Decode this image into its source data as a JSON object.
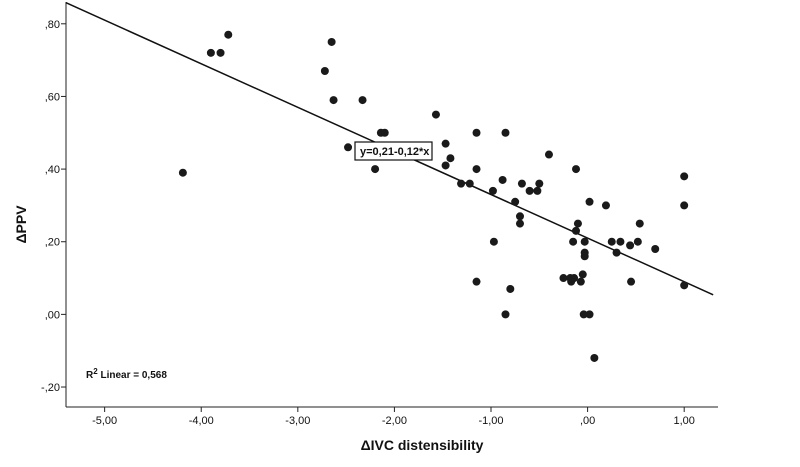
{
  "chart_data": {
    "type": "scatter",
    "title": "",
    "xlabel": "ΔIVC distensibility",
    "ylabel": "ΔPPV",
    "xlim": [
      -5.4,
      1.35
    ],
    "ylim": [
      -0.255,
      0.86
    ],
    "x_ticks": [
      {
        "value": -5,
        "label": "-5,00"
      },
      {
        "value": -4,
        "label": "-4,00"
      },
      {
        "value": -3,
        "label": "-3,00"
      },
      {
        "value": -2,
        "label": "-2,00"
      },
      {
        "value": -1,
        "label": "-1,00"
      },
      {
        "value": 0,
        "label": ",00"
      },
      {
        "value": 1,
        "label": "1,00"
      }
    ],
    "y_ticks": [
      {
        "value": -0.2,
        "label": "-,20"
      },
      {
        "value": 0,
        "label": ",00"
      },
      {
        "value": 0.2,
        "label": ",20"
      },
      {
        "value": 0.4,
        "label": ",40"
      },
      {
        "value": 0.6,
        "label": ",60"
      },
      {
        "value": 0.8,
        "label": ",80"
      }
    ],
    "fit_line": {
      "intercept": 0.21,
      "slope": -0.12,
      "x_range": [
        -5.4,
        1.3
      ]
    },
    "equation_label": "y=0,21-0,12*x",
    "r2_label": {
      "prefix": "R",
      "superscript": "2",
      "suffix": " Linear = 0,568"
    },
    "points": [
      {
        "x": -4.19,
        "y": 0.39
      },
      {
        "x": -3.9,
        "y": 0.72
      },
      {
        "x": -3.8,
        "y": 0.72
      },
      {
        "x": -3.72,
        "y": 0.77
      },
      {
        "x": -2.65,
        "y": 0.75
      },
      {
        "x": -2.72,
        "y": 0.67
      },
      {
        "x": -2.63,
        "y": 0.59
      },
      {
        "x": -2.33,
        "y": 0.59
      },
      {
        "x": -2.48,
        "y": 0.46
      },
      {
        "x": -2.14,
        "y": 0.5
      },
      {
        "x": -2.1,
        "y": 0.5
      },
      {
        "x": -2.2,
        "y": 0.4
      },
      {
        "x": -1.57,
        "y": 0.55
      },
      {
        "x": -1.47,
        "y": 0.47
      },
      {
        "x": -1.42,
        "y": 0.43
      },
      {
        "x": -1.47,
        "y": 0.41
      },
      {
        "x": -1.31,
        "y": 0.36
      },
      {
        "x": -1.22,
        "y": 0.36
      },
      {
        "x": -1.15,
        "y": 0.5
      },
      {
        "x": -1.15,
        "y": 0.4
      },
      {
        "x": -0.98,
        "y": 0.34
      },
      {
        "x": -0.85,
        "y": 0.5
      },
      {
        "x": -0.88,
        "y": 0.37
      },
      {
        "x": -0.75,
        "y": 0.31
      },
      {
        "x": -0.68,
        "y": 0.36
      },
      {
        "x": -0.7,
        "y": 0.27
      },
      {
        "x": -0.7,
        "y": 0.25
      },
      {
        "x": -0.6,
        "y": 0.34
      },
      {
        "x": -0.52,
        "y": 0.34
      },
      {
        "x": -0.5,
        "y": 0.36
      },
      {
        "x": -0.4,
        "y": 0.44
      },
      {
        "x": -0.97,
        "y": 0.2
      },
      {
        "x": -1.15,
        "y": 0.09
      },
      {
        "x": -0.8,
        "y": 0.07
      },
      {
        "x": -0.85,
        "y": 0.0
      },
      {
        "x": -0.12,
        "y": 0.4
      },
      {
        "x": 0.02,
        "y": 0.31
      },
      {
        "x": 0.19,
        "y": 0.3
      },
      {
        "x": -0.1,
        "y": 0.25
      },
      {
        "x": -0.12,
        "y": 0.23
      },
      {
        "x": -0.15,
        "y": 0.2
      },
      {
        "x": -0.03,
        "y": 0.2
      },
      {
        "x": -0.03,
        "y": 0.17
      },
      {
        "x": -0.03,
        "y": 0.16
      },
      {
        "x": -0.25,
        "y": 0.1
      },
      {
        "x": -0.18,
        "y": 0.1
      },
      {
        "x": -0.14,
        "y": 0.1
      },
      {
        "x": -0.07,
        "y": 0.09
      },
      {
        "x": -0.05,
        "y": 0.11
      },
      {
        "x": -0.17,
        "y": 0.09
      },
      {
        "x": -0.04,
        "y": 0.0
      },
      {
        "x": 0.02,
        "y": 0.0
      },
      {
        "x": 0.07,
        "y": -0.12
      },
      {
        "x": 0.25,
        "y": 0.2
      },
      {
        "x": 0.3,
        "y": 0.17
      },
      {
        "x": 0.34,
        "y": 0.2
      },
      {
        "x": 0.44,
        "y": 0.19
      },
      {
        "x": 0.52,
        "y": 0.2
      },
      {
        "x": 0.54,
        "y": 0.25
      },
      {
        "x": 0.45,
        "y": 0.09
      },
      {
        "x": 0.7,
        "y": 0.18
      },
      {
        "x": 1.0,
        "y": 0.38
      },
      {
        "x": 1.0,
        "y": 0.3
      },
      {
        "x": 1.0,
        "y": 0.08
      }
    ]
  }
}
